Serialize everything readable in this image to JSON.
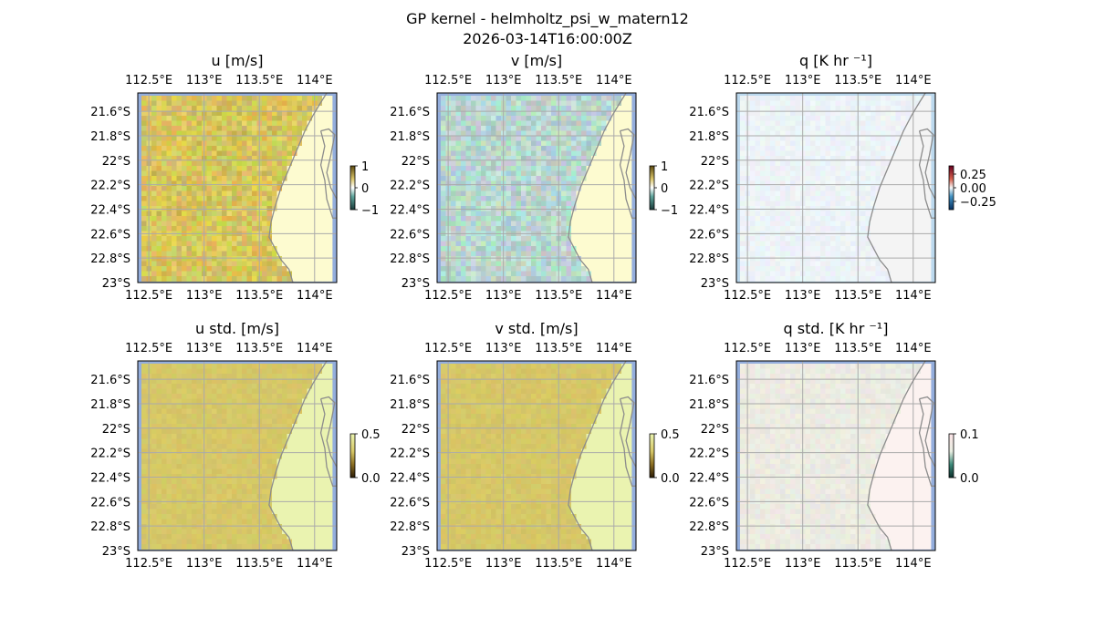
{
  "figure": {
    "title_line1": "GP kernel - helmholtz_psi_w_matern12",
    "title_line2": "2026-03-14T16:00:00Z"
  },
  "chart_data": [
    {
      "type": "heatmap",
      "title": "u [m/s]",
      "variable": "u",
      "colormap": "yellow-white-teal (diverging)",
      "colorbar_ticks": [
        "1",
        "0",
        "−1"
      ],
      "clim": [
        -1,
        1
      ],
      "field_description_color": "#d6c55c",
      "land_color": "#fdfbd0",
      "ocean_border_color": "#94aedd"
    },
    {
      "type": "heatmap",
      "title": "v [m/s]",
      "variable": "v",
      "colormap": "yellow-white-teal (diverging)",
      "colorbar_ticks": [
        "1",
        "0",
        "−1"
      ],
      "clim": [
        -1,
        1
      ],
      "field_description_color": "#b9d7cf",
      "land_color": "#fdfbd0",
      "ocean_border_color": "#94aedd"
    },
    {
      "type": "heatmap",
      "title": "q [K hr ⁻¹]",
      "variable": "q",
      "colormap": "red-white-blue (diverging)",
      "colorbar_ticks": [
        "0.25",
        "0.00",
        "−0.25"
      ],
      "clim": [
        -0.35,
        0.35
      ],
      "field_description_color": "#edf3f7",
      "land_color": "#f4f4f4",
      "ocean_border_color": "#bcd9ee"
    },
    {
      "type": "heatmap",
      "title": "u std. [m/s]",
      "variable": "u_std",
      "colormap": "sequential (brown-yellow)",
      "colorbar_ticks": [
        "0.5",
        "0.0"
      ],
      "clim": [
        0,
        0.5
      ],
      "field_description_color": "#d6c767",
      "land_color": "#eaf3b0",
      "ocean_border_color": "#94aedd"
    },
    {
      "type": "heatmap",
      "title": "v std. [m/s]",
      "variable": "v_std",
      "colormap": "sequential (brown-yellow)",
      "colorbar_ticks": [
        "0.5",
        "0.0"
      ],
      "clim": [
        0,
        0.5
      ],
      "field_description_color": "#d6c767",
      "land_color": "#eaf3b0",
      "ocean_border_color": "#94aedd"
    },
    {
      "type": "heatmap",
      "title": "q std. [K hr ⁻¹]",
      "variable": "q_std",
      "colormap": "sequential (dark-teal-pink)",
      "colorbar_ticks": [
        "0.1",
        "0.0"
      ],
      "clim": [
        0,
        0.12
      ],
      "field_description_color": "#ecebe2",
      "land_color": "#fcf2f0",
      "ocean_border_color": "#94aedd"
    }
  ],
  "axes": {
    "lon_ticks": [
      "112.5°E",
      "113°E",
      "113.5°E",
      "114°E"
    ],
    "lon_values": [
      112.5,
      113.0,
      113.5,
      114.0
    ],
    "lat_ticks": [
      "21.6°S",
      "21.8°S",
      "22°S",
      "22.2°S",
      "22.4°S",
      "22.6°S",
      "22.8°S",
      "23°S"
    ],
    "lat_values": [
      -21.6,
      -21.8,
      -22.0,
      -22.2,
      -22.4,
      -22.6,
      -22.8,
      -23.0
    ],
    "lon_range": [
      112.4,
      114.2
    ],
    "lat_range": [
      -23.0,
      -21.45
    ],
    "gridlines": true
  },
  "colors": {
    "gridline": "#aaaaaa",
    "coastline": "#8c8c8c"
  }
}
